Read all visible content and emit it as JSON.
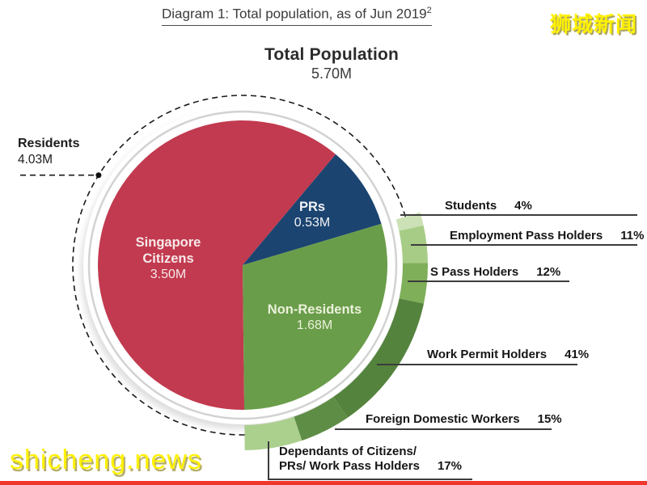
{
  "header": {
    "diagram_title": "Diagram 1: Total population, as of Jun 2019",
    "diagram_title_sup": "2"
  },
  "watermarks": {
    "top_right": "狮城新闻",
    "bottom_left": "shicheng.news",
    "color": "#FFF100"
  },
  "chart_data": {
    "type": "pie",
    "title": "Total Population",
    "total_label": "5.70M",
    "units": "millions of people",
    "start_angle_deg": 179.33,
    "slices": [
      {
        "name": "Singapore Citizens",
        "name_lines": [
          "Singapore",
          "Citizens"
        ],
        "value": 3.5,
        "value_label": "3.50M",
        "color": "#C23A4F",
        "text_color": "#F7E9EA"
      },
      {
        "name": "PRs",
        "name_lines": [
          "PRs"
        ],
        "value": 0.53,
        "value_label": "0.53M",
        "color": "#1B4470",
        "text_color": "#F2F2F6"
      },
      {
        "name": "Non-Residents",
        "name_lines": [
          "Non-Residents"
        ],
        "value": 1.68,
        "value_label": "1.68M",
        "color": "#6A9D4A",
        "text_color": "#EAF1DA"
      }
    ],
    "annotation": {
      "label": "Residents",
      "value_label": "4.03M",
      "covers": [
        "Singapore Citizens",
        "PRs"
      ],
      "style": "dashed-arc"
    },
    "outer_ring": {
      "covers": "Non-Residents",
      "segments": [
        {
          "label": "Students",
          "pct": 4,
          "pct_label": "4%",
          "color": "#CCE1B5"
        },
        {
          "label": "Employment Pass Holders",
          "pct": 11,
          "pct_label": "11%",
          "color": "#A7CC86"
        },
        {
          "label": "S Pass Holders",
          "pct": 12,
          "pct_label": "12%",
          "color": "#7FAF58"
        },
        {
          "label": "Work Permit Holders",
          "pct": 41,
          "pct_label": "41%",
          "color": "#54833D"
        },
        {
          "label": "Foreign Domestic Workers",
          "pct": 15,
          "pct_label": "15%",
          "color": "#5E8D46"
        },
        {
          "label": "Dependants of Citizens/ PRs/ Work Pass Holders",
          "label_lines": [
            "Dependants of Citizens/",
            "PRs/ Work Pass Holders"
          ],
          "pct": 17,
          "pct_label": "17%",
          "color": "#ABCF8D"
        }
      ]
    }
  }
}
